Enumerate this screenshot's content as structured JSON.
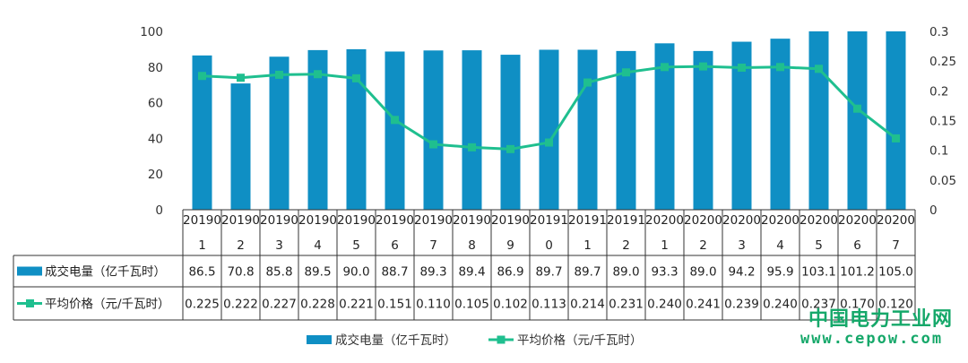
{
  "chart_data": {
    "type": "bar",
    "categories": [
      "201901",
      "201902",
      "201903",
      "201904",
      "201905",
      "201906",
      "201907",
      "201908",
      "201909",
      "201910",
      "201911",
      "201912",
      "202001",
      "202002",
      "202003",
      "202004",
      "202005",
      "202006",
      "202007"
    ],
    "series": [
      {
        "name": "成交电量（亿千瓦时）",
        "type": "bar",
        "axis": "left",
        "color": "#0f8fc4",
        "values": [
          86.5,
          70.8,
          85.8,
          89.5,
          90.0,
          88.7,
          89.3,
          89.4,
          86.9,
          89.7,
          89.7,
          89.0,
          93.3,
          89.0,
          94.2,
          95.9,
          103.1,
          101.2,
          105.0
        ],
        "labels": [
          "86.5",
          "70.8",
          "85.8",
          "89.5",
          "90.0",
          "88.7",
          "89.3",
          "89.4",
          "86.9",
          "89.7",
          "89.7",
          "89.0",
          "93.3",
          "89.0",
          "94.2",
          "95.9",
          "103.1",
          "101.2",
          "105.0"
        ]
      },
      {
        "name": "平均价格（元/千瓦时）",
        "type": "line",
        "axis": "right",
        "color": "#1fbf8f",
        "values": [
          0.225,
          0.222,
          0.227,
          0.228,
          0.221,
          0.151,
          0.11,
          0.105,
          0.102,
          0.113,
          0.214,
          0.231,
          0.24,
          0.241,
          0.239,
          0.24,
          0.237,
          0.17,
          0.12
        ],
        "labels": [
          "0.225",
          "0.222",
          "0.227",
          "0.228",
          "0.221",
          "0.151",
          "0.110",
          "0.105",
          "0.102",
          "0.113",
          "0.214",
          "0.231",
          "0.240",
          "0.241",
          "0.239",
          "0.240",
          "0.237",
          "0.170",
          "0.120"
        ]
      }
    ],
    "y_left": {
      "ylim": [
        0,
        100
      ],
      "ticks": [
        "0",
        "20",
        "40",
        "60",
        "80",
        "100"
      ]
    },
    "y_right": {
      "ylim": [
        0,
        0.3
      ],
      "ticks": [
        "0",
        "0.05",
        "0.1",
        "0.15",
        "0.2",
        "0.25",
        "0.3"
      ]
    },
    "grid": false,
    "legend_position": "bottom-center",
    "data_table": true
  },
  "watermark": {
    "line1": "中国电力工业网",
    "line2": "www.cepow.com"
  }
}
